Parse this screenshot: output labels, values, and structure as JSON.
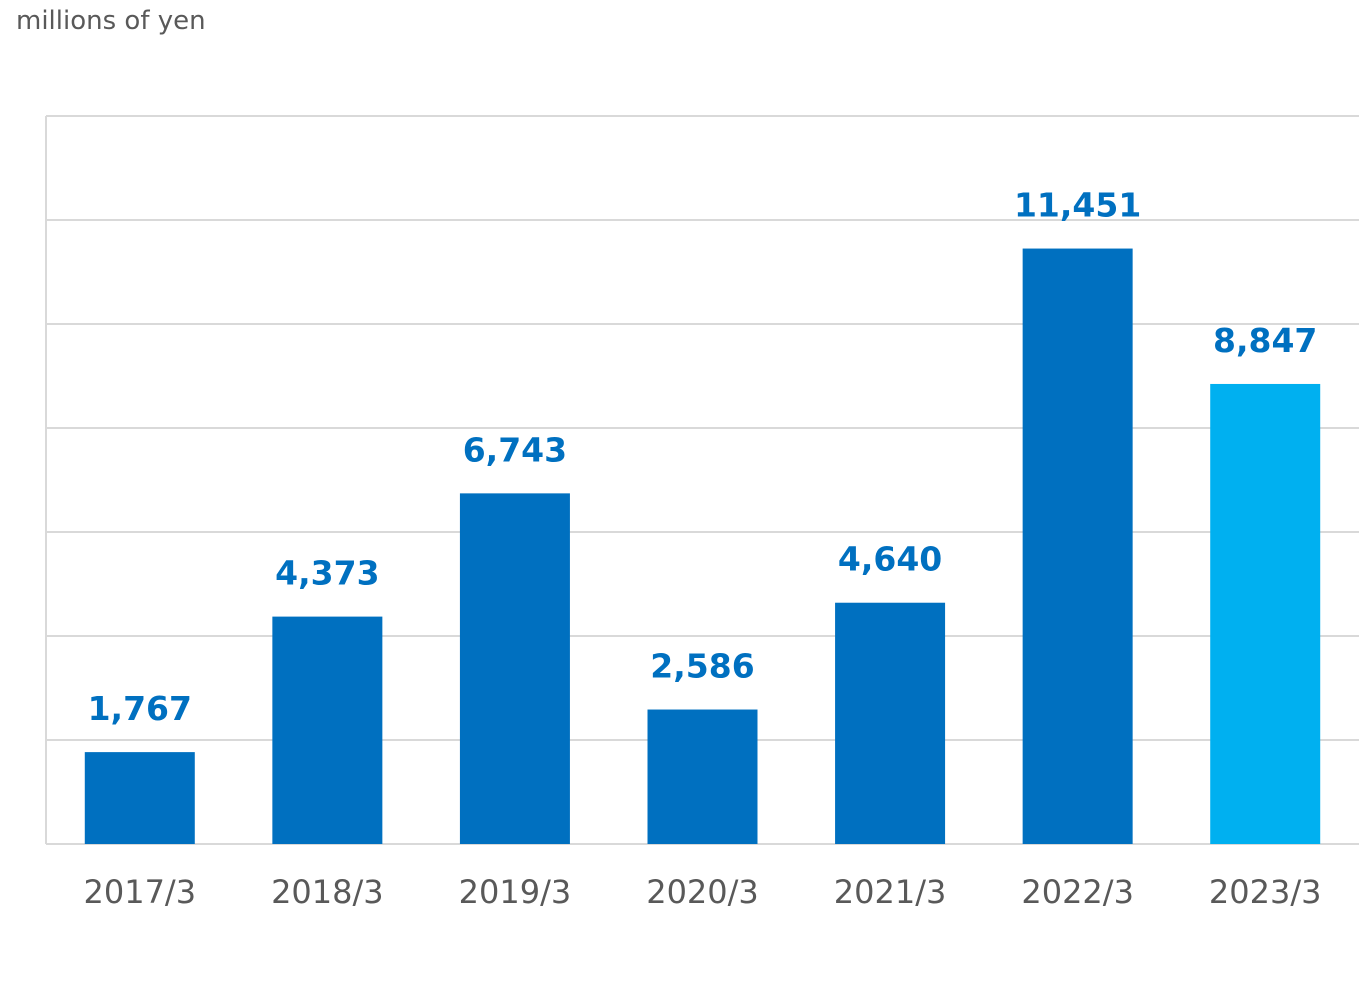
{
  "chart_data": {
    "type": "bar",
    "unit_label": "millions of yen",
    "categories": [
      "2017/3",
      "2018/3",
      "2019/3",
      "2020/3",
      "2021/3",
      "2022/3",
      "2023/3"
    ],
    "values": [
      1767,
      4373,
      6743,
      2586,
      4640,
      11451,
      8847
    ],
    "value_labels": [
      "1,767",
      "4,373",
      "6,743",
      "2,586",
      "4,640",
      "11,451",
      "8,847"
    ],
    "ylim": [
      0,
      14000
    ],
    "grid": true,
    "legend": "none",
    "colors": {
      "bar": "#0070c0",
      "bar_highlight": "#00b0f0",
      "value_label": "#0070c0",
      "axis_text": "#595959",
      "grid": "#d9d9d9"
    },
    "highlight_index": 6
  }
}
